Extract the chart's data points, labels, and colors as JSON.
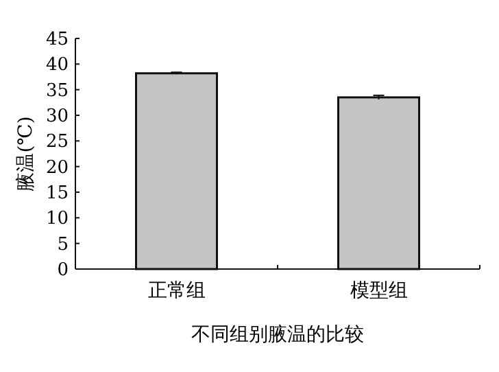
{
  "chart_data": {
    "type": "bar",
    "title": "不同组别腋温的比较",
    "ylabel": "腋温(℃)",
    "categories": [
      "正常组",
      "模型组"
    ],
    "values": [
      38.2,
      33.5
    ],
    "errors": [
      0.2,
      0.4
    ],
    "color": "#c4c4c4",
    "ylim": [
      0,
      45
    ],
    "yticks": [
      0,
      5,
      10,
      15,
      20,
      25,
      30,
      35,
      40,
      45
    ],
    "grid": false
  }
}
